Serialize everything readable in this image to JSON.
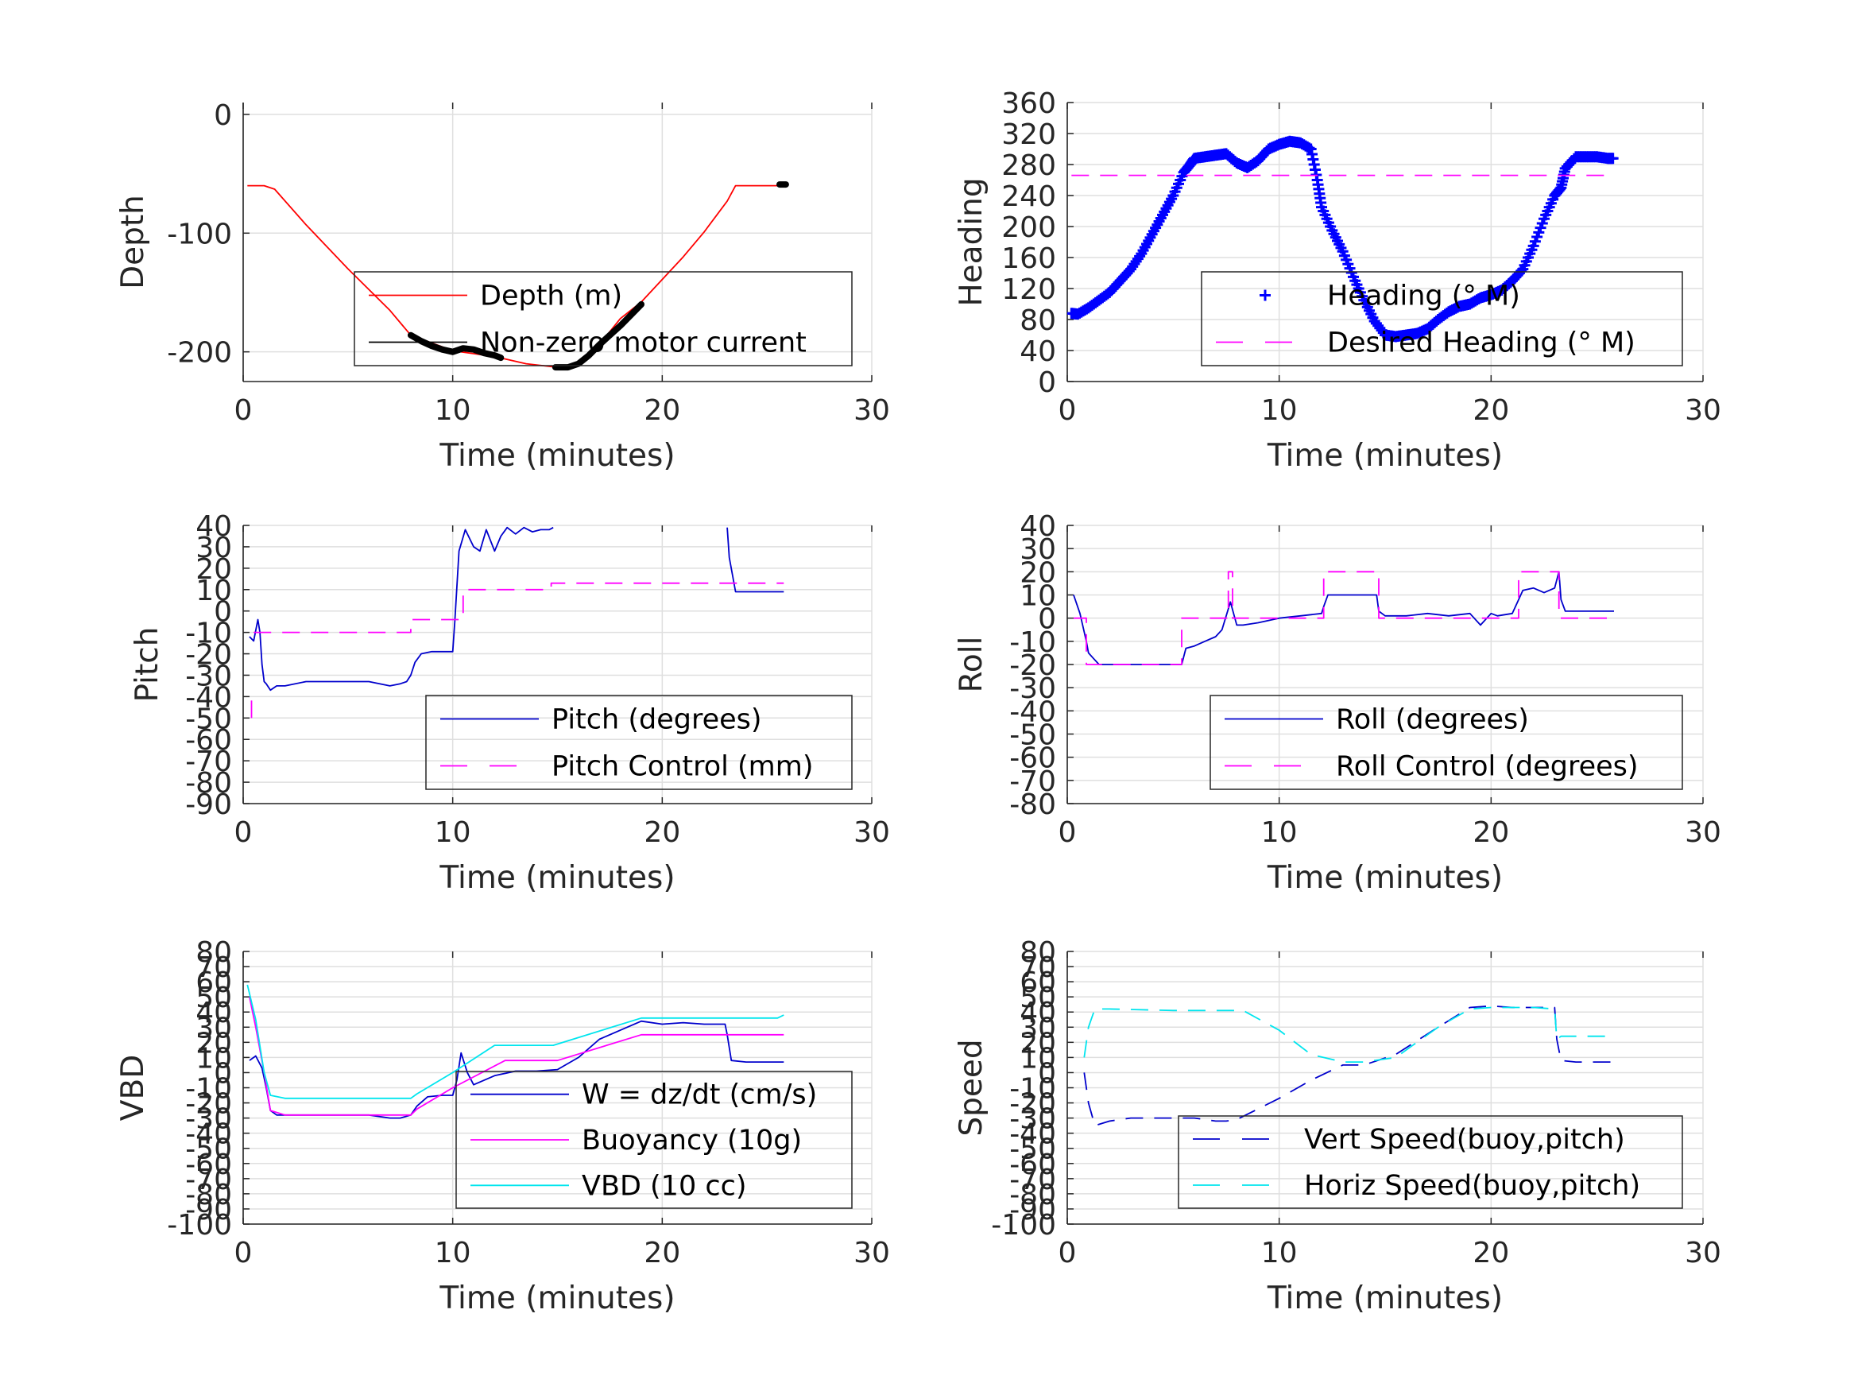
{
  "chart_data": [
    {
      "type": "line",
      "id": "depth",
      "xlabel": "Time (minutes)",
      "ylabel": "Depth",
      "xlim": [
        0,
        30
      ],
      "ylim": [
        -225,
        10
      ],
      "xticks": [
        0,
        10,
        20,
        30
      ],
      "yticks": [
        0,
        -100,
        -200
      ],
      "grid": true,
      "legend_position": "lower-right",
      "series": [
        {
          "name": "Depth (m)",
          "color": "#ff0000",
          "style": "solid",
          "x": [
            0.2,
            1.0,
            1.5,
            3,
            5,
            7,
            8,
            10,
            12,
            13.5,
            15,
            16,
            17,
            18,
            19,
            21,
            22,
            23.1,
            23.5,
            25.8
          ],
          "y": [
            -60,
            -60,
            -63,
            -93,
            -130,
            -165,
            -186,
            -199,
            -204,
            -210,
            -213,
            -209,
            -194,
            -172,
            -158,
            -120,
            -99,
            -73,
            -60,
            -60
          ]
        },
        {
          "name": "Non-zero motor current",
          "color": "#000000",
          "style": "thick",
          "x": [
            8.0,
            8.5,
            9,
            9.5,
            10,
            10.5,
            11,
            11.5,
            12,
            12.3
          ],
          "y": [
            -186,
            -191,
            -195,
            -198,
            -200,
            -197,
            -198,
            -201,
            -203,
            -205
          ]
        },
        {
          "name": "",
          "color": "#000000",
          "style": "thick",
          "x": [
            14.9,
            15.5,
            16,
            16.5,
            17,
            17.5,
            18,
            18.5,
            19
          ],
          "y": [
            -213,
            -213,
            -210,
            -203,
            -194,
            -186,
            -178,
            -169,
            -160
          ]
        },
        {
          "name": "",
          "color": "#000000",
          "style": "thick",
          "x": [
            25.6,
            25.9
          ],
          "y": [
            -59,
            -59
          ]
        }
      ]
    },
    {
      "type": "scatter",
      "id": "heading",
      "xlabel": "Time (minutes)",
      "ylabel": "Heading",
      "xlim": [
        0,
        30
      ],
      "ylim": [
        0,
        360
      ],
      "xticks": [
        0,
        10,
        20,
        30
      ],
      "yticks": [
        0,
        40,
        80,
        120,
        160,
        200,
        240,
        280,
        320,
        360
      ],
      "grid": true,
      "legend_position": "lower-right",
      "series": [
        {
          "name": "Heading (° M)",
          "color": "#0000ff",
          "style": "plus",
          "x": [
            0.2,
            0.5,
            1,
            1.5,
            2,
            2.5,
            3,
            3.5,
            4,
            4.5,
            5,
            5.5,
            5.8,
            6,
            6.5,
            7,
            7.5,
            8,
            8.5,
            9,
            9.5,
            10,
            10.5,
            11,
            11.5,
            11.8,
            12,
            12.5,
            13,
            13.5,
            14,
            14.5,
            15,
            15.5,
            16,
            16.5,
            17,
            17.5,
            18,
            18.5,
            19,
            19.5,
            20,
            20.5,
            21,
            21.5,
            22,
            22.5,
            23,
            23.3,
            23.5,
            24,
            24.5,
            25,
            25.5,
            25.8
          ],
          "y": [
            88,
            87,
            95,
            105,
            115,
            130,
            145,
            165,
            190,
            215,
            240,
            270,
            280,
            288,
            290,
            292,
            294,
            282,
            276,
            285,
            300,
            306,
            310,
            308,
            300,
            260,
            225,
            195,
            168,
            135,
            105,
            78,
            60,
            58,
            60,
            62,
            68,
            80,
            90,
            97,
            100,
            108,
            112,
            118,
            130,
            145,
            175,
            210,
            240,
            250,
            275,
            290,
            290,
            290,
            288,
            288
          ]
        },
        {
          "name": "Desired Heading (° M)",
          "color": "#ff00ff",
          "style": "dashed",
          "x": [
            0.2,
            25.8
          ],
          "y": [
            266,
            266
          ]
        }
      ]
    },
    {
      "type": "line",
      "id": "pitch",
      "xlabel": "Time (minutes)",
      "ylabel": "Pitch",
      "xlim": [
        0,
        30
      ],
      "ylim": [
        -90,
        40
      ],
      "xticks": [
        0,
        10,
        20,
        30
      ],
      "yticks": [
        40,
        30,
        20,
        10,
        0,
        -10,
        -20,
        -30,
        -40,
        -50,
        -60,
        -70,
        -80,
        -90
      ],
      "grid": true,
      "legend_position": "lower-right",
      "series": [
        {
          "name": "Pitch (degrees)",
          "color": "#0000cc",
          "style": "solid",
          "segments": [
            {
              "x": [
                0.3,
                0.5,
                0.7,
                0.8,
                0.9,
                1.0,
                1.1,
                1.3,
                1.6,
                2.0,
                3,
                4,
                5,
                6,
                7,
                7.5,
                7.8,
                8.0,
                8.2,
                8.5,
                9,
                9.5,
                10.0,
                10.1,
                10.3,
                10.6,
                11,
                11.3,
                11.6,
                12,
                12.3,
                12.6,
                13,
                13.4,
                13.8,
                14.2,
                14.6,
                14.8
              ],
              "y": [
                -12,
                -14,
                -4,
                -10,
                -25,
                -33,
                -34,
                -37,
                -35,
                -35,
                -33,
                -33,
                -33,
                -33,
                -35,
                -34,
                -33,
                -30,
                -24,
                -20,
                -19,
                -19,
                -19,
                -5,
                28,
                38,
                30,
                28,
                38,
                28,
                35,
                39,
                36,
                39,
                37,
                38,
                38,
                39
              ]
            },
            {
              "x": [
                23.1,
                23.2,
                23.5,
                24,
                24.5,
                25,
                25.5,
                25.8
              ],
              "y": [
                39,
                25,
                9,
                9,
                9,
                9,
                9,
                9
              ]
            }
          ]
        },
        {
          "name": "Pitch Control (mm)",
          "color": "#ff00ff",
          "style": "dashed",
          "segments": [
            {
              "x": [
                0.3,
                0.3
              ],
              "y": [
                -65,
                -65
              ]
            },
            {
              "x": [
                0.4,
                0.4
              ],
              "y": [
                -50,
                -40
              ]
            },
            {
              "x": [
                0.5,
                8.0,
                8.0,
                9.9,
                9.9,
                10.5,
                10.5,
                14.7,
                14.7,
                25.8
              ],
              "y": [
                -10,
                -10,
                -4,
                -4,
                -4,
                -4,
                10,
                10,
                13,
                13
              ]
            }
          ]
        }
      ]
    },
    {
      "type": "line",
      "id": "roll",
      "xlabel": "Time (minutes)",
      "ylabel": "Roll",
      "xlim": [
        0,
        30
      ],
      "ylim": [
        -80,
        40
      ],
      "xticks": [
        0,
        10,
        20,
        30
      ],
      "yticks": [
        40,
        30,
        20,
        10,
        0,
        -10,
        -20,
        -30,
        -40,
        -50,
        -60,
        -70,
        -80
      ],
      "grid": true,
      "legend_position": "lower-right",
      "series": [
        {
          "name": "Roll (degrees)",
          "color": "#0000cc",
          "style": "solid",
          "x": [
            0.3,
            0.6,
            0.9,
            1.0,
            1.2,
            1.5,
            2.0,
            3,
            4,
            5,
            5.4,
            5.6,
            6,
            6.5,
            7,
            7.3,
            7.7,
            8.0,
            8.3,
            9,
            10,
            11,
            12,
            12.1,
            12.3,
            13,
            14,
            14.6,
            14.7,
            15,
            16,
            17,
            18,
            19,
            19.5,
            20,
            20.3,
            21,
            21.2,
            21.5,
            22,
            22.5,
            23,
            23.2,
            23.3,
            23.5,
            24,
            25,
            25.8
          ],
          "y": [
            10,
            2,
            -10,
            -15,
            -17,
            -20,
            -20,
            -20,
            -20,
            -20,
            -20,
            -13,
            -12,
            -10,
            -8,
            -5,
            7,
            -3,
            -3,
            -2,
            0,
            1,
            2,
            5,
            10,
            10,
            10,
            10,
            3,
            1,
            1,
            2,
            1,
            2,
            -3,
            2,
            1,
            2,
            6,
            12,
            13,
            11,
            13,
            20,
            8,
            3,
            3,
            3,
            3
          ]
        },
        {
          "name": "Roll Control (degrees)",
          "color": "#ff00ff",
          "style": "dashed",
          "segments": [
            {
              "x": [
                0.3,
                0.9,
                0.9,
                5.4,
                5.4,
                7.6,
                7.6,
                7.8,
                7.8,
                12.1,
                12.1,
                14.7,
                14.7,
                21.3,
                21.3,
                23.2,
                23.2,
                25.8
              ],
              "y": [
                0,
                0,
                -20,
                -20,
                0,
                0,
                20,
                20,
                0,
                0,
                20,
                20,
                0,
                0,
                20,
                20,
                0,
                0
              ]
            }
          ]
        }
      ]
    },
    {
      "type": "line",
      "id": "vbd",
      "xlabel": "Time (minutes)",
      "ylabel": "VBD",
      "xlim": [
        0,
        30
      ],
      "ylim": [
        -100,
        80
      ],
      "xticks": [
        0,
        10,
        20,
        30
      ],
      "yticks": [
        80,
        70,
        60,
        50,
        40,
        30,
        20,
        10,
        0,
        -10,
        -20,
        -30,
        -40,
        -50,
        -60,
        -70,
        -80,
        -90,
        -100
      ],
      "grid": true,
      "legend_position": "lower-right",
      "series": [
        {
          "name": "W = dz/dt (cm/s)",
          "color": "#0000cc",
          "style": "solid",
          "x": [
            0.3,
            0.6,
            0.9,
            1.1,
            1.3,
            1.6,
            2,
            3,
            4,
            5,
            6,
            7,
            7.5,
            8,
            8.3,
            8.8,
            9.5,
            10,
            10.2,
            10.4,
            10.7,
            11,
            12,
            13,
            14,
            15,
            16,
            17,
            18,
            19,
            20,
            21,
            22,
            23.0,
            23.1,
            23.3,
            24,
            25,
            25.8
          ],
          "y": [
            8,
            11,
            3,
            -10,
            -25,
            -28,
            -28,
            -28,
            -28,
            -28,
            -28,
            -30,
            -30,
            -28,
            -22,
            -16,
            -15,
            -15,
            -5,
            13,
            0,
            -8,
            -2,
            1,
            1,
            2,
            10,
            22,
            28,
            34,
            32,
            33,
            32,
            32,
            25,
            8,
            7,
            7,
            7
          ]
        },
        {
          "name": "Buoyancy (10g)",
          "color": "#ff00ff",
          "style": "solid",
          "x": [
            0.3,
            0.6,
            1.0,
            1.3,
            2,
            8.0,
            8.3,
            10.0,
            12.5,
            15.0,
            19.0,
            25.8
          ],
          "y": [
            50,
            30,
            0,
            -25,
            -28,
            -28,
            -24,
            -10,
            8,
            8,
            25,
            25
          ]
        },
        {
          "name": "VBD (10 cc)",
          "color": "#00e5ee",
          "style": "solid",
          "x": [
            0.2,
            0.6,
            1.0,
            1.3,
            2,
            8.0,
            8.3,
            10.0,
            12.0,
            14.8,
            19.0,
            25.5,
            25.8
          ],
          "y": [
            58,
            35,
            0,
            -15,
            -17,
            -17,
            -14,
            0,
            18,
            18,
            36,
            36,
            38
          ]
        }
      ]
    },
    {
      "type": "line",
      "id": "speed",
      "xlabel": "Time (minutes)",
      "ylabel": "Speed",
      "xlim": [
        0,
        30
      ],
      "ylim": [
        -100,
        80
      ],
      "xticks": [
        0,
        10,
        20,
        30
      ],
      "yticks": [
        80,
        70,
        60,
        50,
        40,
        30,
        20,
        10,
        0,
        -10,
        -20,
        -30,
        -40,
        -50,
        -60,
        -70,
        -80,
        -90,
        -100
      ],
      "grid": true,
      "legend_position": "lower-right",
      "series": [
        {
          "name": "Vert Speed(buoy,pitch)",
          "color": "#0000cc",
          "style": "dashed",
          "x": [
            0.8,
            1.0,
            1.3,
            2,
            3,
            5,
            6,
            7,
            7.5,
            8.0,
            10.0,
            11.5,
            13.0,
            14.0,
            15.5,
            17.5,
            19.0,
            20.0,
            21.0,
            22.0,
            23.0,
            23.1,
            23.3,
            24,
            25.8
          ],
          "y": [
            0,
            -20,
            -35,
            -32,
            -30,
            -30,
            -30,
            -32,
            -32,
            -31,
            -17,
            -5,
            5,
            5,
            12,
            30,
            43,
            44,
            43,
            43,
            43,
            22,
            8,
            7,
            7
          ]
        },
        {
          "name": "Horiz Speed(buoy,pitch)",
          "color": "#00e5ee",
          "style": "dashed",
          "x": [
            0.8,
            1.0,
            1.3,
            2,
            5,
            7,
            8.3,
            10,
            11.5,
            13,
            14,
            15.5,
            17.5,
            19,
            20,
            21,
            22,
            23.0,
            23.1,
            23.3,
            24,
            25.8
          ],
          "y": [
            10,
            30,
            42,
            42,
            41,
            41,
            41,
            28,
            12,
            7,
            7,
            10,
            30,
            42,
            43,
            43,
            43,
            42,
            22,
            24,
            24,
            24
          ]
        }
      ]
    }
  ]
}
